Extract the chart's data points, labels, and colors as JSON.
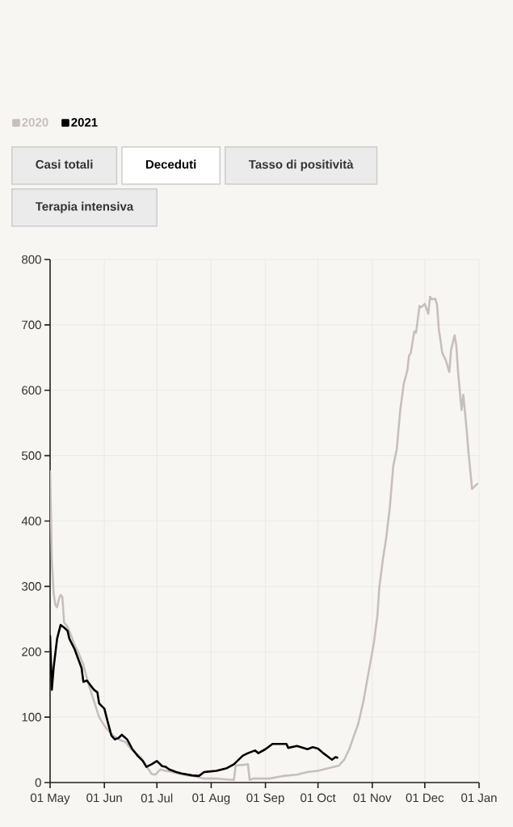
{
  "chart_data": {
    "type": "line",
    "title": "Deceduti",
    "annotations": [
      "Casi totali",
      "Tasso di positività",
      "Terapia intensiva"
    ],
    "legend": "top left",
    "grid": true,
    "xlim": [
      "2020-05-01",
      "2021-01-01"
    ],
    "ylim": [
      0,
      800
    ],
    "xticks": [
      {
        "value": "2020-05-01",
        "label": "01 May"
      },
      {
        "value": "2020-06-01",
        "label": "01 Jun"
      },
      {
        "value": "2020-07-01",
        "label": "01 Jul"
      },
      {
        "value": "2020-08-01",
        "label": "01 Aug"
      },
      {
        "value": "2020-09-01",
        "label": "01 Sep"
      },
      {
        "value": "2020-10-01",
        "label": "01 Oct"
      },
      {
        "value": "2020-11-01",
        "label": "01 Nov"
      },
      {
        "value": "2020-12-01",
        "label": "01 Dec"
      },
      {
        "value": "2021-01-01",
        "label": "01 Jan"
      }
    ],
    "yticks": [
      0,
      100,
      200,
      300,
      400,
      500,
      600,
      700,
      800
    ],
    "series": [
      {
        "name": "2020",
        "color": "#c8bebe",
        "x": [
          "2020-05-01",
          "2020-05-02",
          "2020-05-03",
          "2020-05-04",
          "2020-05-05",
          "2020-05-06",
          "2020-05-07",
          "2020-05-08",
          "2020-05-09",
          "2020-05-11",
          "2020-05-13",
          "2020-05-15",
          "2020-05-17",
          "2020-05-20",
          "2020-05-23",
          "2020-05-26",
          "2020-05-29",
          "2020-06-01",
          "2020-06-04",
          "2020-06-07",
          "2020-06-10",
          "2020-06-13",
          "2020-06-16",
          "2020-06-19",
          "2020-06-22",
          "2020-06-25",
          "2020-06-28",
          "2020-06-30",
          "2020-07-03",
          "2020-07-06",
          "2020-07-10",
          "2020-07-13",
          "2020-07-18",
          "2020-07-22",
          "2020-07-28",
          "2020-08-04",
          "2020-08-09",
          "2020-08-14",
          "2020-08-15",
          "2020-08-19",
          "2020-08-22",
          "2020-08-23",
          "2020-08-25",
          "2020-09-03",
          "2020-09-11",
          "2020-09-19",
          "2020-09-25",
          "2020-10-01",
          "2020-10-07",
          "2020-10-13",
          "2020-10-16",
          "2020-10-19",
          "2020-10-22",
          "2020-10-24",
          "2020-10-27",
          "2020-10-29",
          "2020-10-31",
          "2020-11-02",
          "2020-11-04",
          "2020-11-05",
          "2020-11-07",
          "2020-11-09",
          "2020-11-11",
          "2020-11-13",
          "2020-11-15",
          "2020-11-17",
          "2020-11-19",
          "2020-11-21",
          "2020-11-22",
          "2020-11-23",
          "2020-11-25",
          "2020-11-26",
          "2020-11-28",
          "2020-11-29",
          "2020-12-01",
          "2020-12-03",
          "2020-12-04",
          "2020-12-05",
          "2020-12-07",
          "2020-12-08",
          "2020-12-09",
          "2020-12-11",
          "2020-12-13",
          "2020-12-15",
          "2020-12-16",
          "2020-12-18",
          "2020-12-19",
          "2020-12-20",
          "2020-12-22",
          "2020-12-23",
          "2020-12-25",
          "2020-12-26",
          "2020-12-28",
          "2020-12-31"
        ],
        "values": [
          476,
          340,
          290,
          272,
          268,
          280,
          287,
          284,
          245,
          238,
          225,
          210,
          200,
          180,
          150,
          125,
          100,
          87,
          77,
          70,
          65,
          62,
          52,
          45,
          38,
          25,
          13,
          12,
          20,
          18,
          16,
          14,
          11,
          10,
          6,
          6,
          5,
          4,
          26,
          27,
          28,
          4,
          6,
          6,
          10,
          12,
          16,
          18,
          22,
          26,
          35,
          52,
          75,
          90,
          125,
          155,
          185,
          215,
          257,
          298,
          340,
          375,
          420,
          484,
          510,
          570,
          610,
          630,
          653,
          657,
          690,
          688,
          729,
          727,
          732,
          717,
          743,
          739,
          740,
          731,
          694,
          657,
          646,
          628,
          661,
          684,
          669,
          628,
          570,
          593,
          537,
          504,
          449,
          457
        ]
      },
      {
        "name": "2021",
        "color": "#000000",
        "x": [
          "2020-05-01",
          "2020-05-02",
          "2020-05-03",
          "2020-05-05",
          "2020-05-07",
          "2020-05-09",
          "2020-05-11",
          "2020-05-12",
          "2020-05-15",
          "2020-05-19",
          "2020-05-20",
          "2020-05-22",
          "2020-05-26",
          "2020-05-28",
          "2020-05-29",
          "2020-06-01",
          "2020-06-03",
          "2020-06-05",
          "2020-06-07",
          "2020-06-09",
          "2020-06-11",
          "2020-06-14",
          "2020-06-17",
          "2020-06-20",
          "2020-06-23",
          "2020-06-25",
          "2020-06-28",
          "2020-07-01",
          "2020-07-04",
          "2020-07-06",
          "2020-07-08",
          "2020-07-12",
          "2020-07-15",
          "2020-07-21",
          "2020-07-25",
          "2020-07-28",
          "2020-08-04",
          "2020-08-10",
          "2020-08-14",
          "2020-08-19",
          "2020-08-22",
          "2020-08-26",
          "2020-08-28",
          "2020-09-01",
          "2020-09-05",
          "2020-09-09",
          "2020-09-13",
          "2020-09-14",
          "2020-09-19",
          "2020-09-25",
          "2020-09-28",
          "2020-10-01",
          "2020-10-04",
          "2020-10-07",
          "2020-10-09",
          "2020-10-11",
          "2020-10-12"
        ],
        "values": [
          224,
          142,
          175,
          220,
          241,
          237,
          232,
          220,
          204,
          175,
          154,
          156,
          142,
          138,
          121,
          113,
          92,
          72,
          66,
          68,
          73,
          66,
          51,
          41,
          33,
          24,
          28,
          33,
          25,
          24,
          20,
          16,
          14,
          11,
          10,
          16,
          18,
          22,
          28,
          41,
          45,
          49,
          45,
          51,
          59,
          59,
          59,
          53,
          56,
          51,
          54,
          52,
          45,
          39,
          35,
          39,
          38
        ]
      }
    ]
  }
}
